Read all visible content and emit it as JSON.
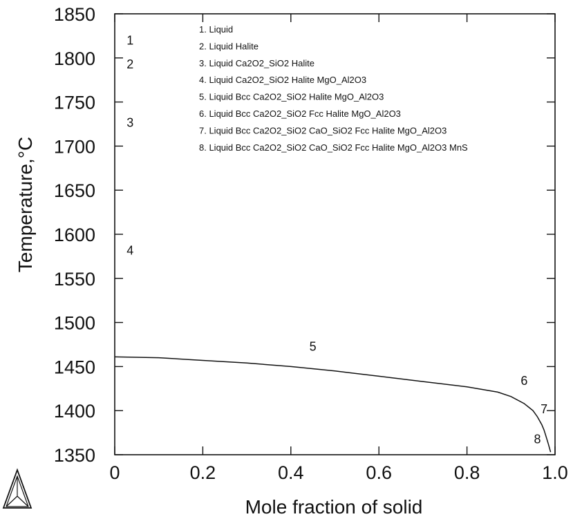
{
  "chart_data": {
    "type": "line",
    "title": "",
    "xlabel": "Mole fraction of solid",
    "ylabel": "Temperature,",
    "ylabel_unit": "°C",
    "xlim": [
      0,
      1.0
    ],
    "ylim": [
      1350,
      1850
    ],
    "x_ticks": [
      0,
      0.2,
      0.4,
      0.6,
      0.8,
      1.0
    ],
    "x_tick_labels": [
      "0",
      "0.2",
      "0.4",
      "0.6",
      "0.8",
      "1.0"
    ],
    "y_ticks": [
      1350,
      1400,
      1450,
      1500,
      1550,
      1600,
      1650,
      1700,
      1750,
      1800,
      1850
    ],
    "y_tick_labels": [
      "1350",
      "1400",
      "1450",
      "1500",
      "1550",
      "1600",
      "1650",
      "1700",
      "1750",
      "1800",
      "1850"
    ],
    "grid": false,
    "series": [
      {
        "x": [
          0.0,
          0.1,
          0.2,
          0.3,
          0.4,
          0.5,
          0.6,
          0.7,
          0.8,
          0.87,
          0.9,
          0.93,
          0.95,
          0.96,
          0.97,
          0.975,
          0.98,
          0.985,
          0.99
        ],
        "y": [
          1461,
          1460,
          1457,
          1454,
          1450,
          1445,
          1439,
          1433,
          1427,
          1421,
          1416,
          1408,
          1400,
          1393,
          1384,
          1378,
          1370,
          1362,
          1353
        ]
      }
    ],
    "legend": {
      "placement": "top-center",
      "entries": [
        "1. Liquid",
        "2. Liquid Halite",
        "3. Liquid Ca2O2_SiO2 Halite",
        "4. Liquid Ca2O2_SiO2 Halite MgO_Al2O3",
        "5. Liquid Bcc Ca2O2_SiO2 Halite MgO_Al2O3",
        "6. Liquid Bcc Ca2O2_SiO2 Fcc Halite MgO_Al2O3",
        "7. Liquid Bcc Ca2O2_SiO2 CaO_SiO2 Fcc Halite MgO_Al2O3",
        "8. Liquid Bcc Ca2O2_SiO2 CaO_SiO2 Fcc Halite MgO_Al2O3 MnS"
      ]
    },
    "annotations": [
      {
        "text": "1",
        "x": 0.035,
        "y": 1815
      },
      {
        "text": "2",
        "x": 0.035,
        "y": 1788
      },
      {
        "text": "3",
        "x": 0.035,
        "y": 1722
      },
      {
        "text": "4",
        "x": 0.035,
        "y": 1577
      },
      {
        "text": "5",
        "x": 0.45,
        "y": 1468
      },
      {
        "text": "6",
        "x": 0.93,
        "y": 1429
      },
      {
        "text": "7",
        "x": 0.975,
        "y": 1397
      },
      {
        "text": "8",
        "x": 0.96,
        "y": 1363
      }
    ]
  }
}
